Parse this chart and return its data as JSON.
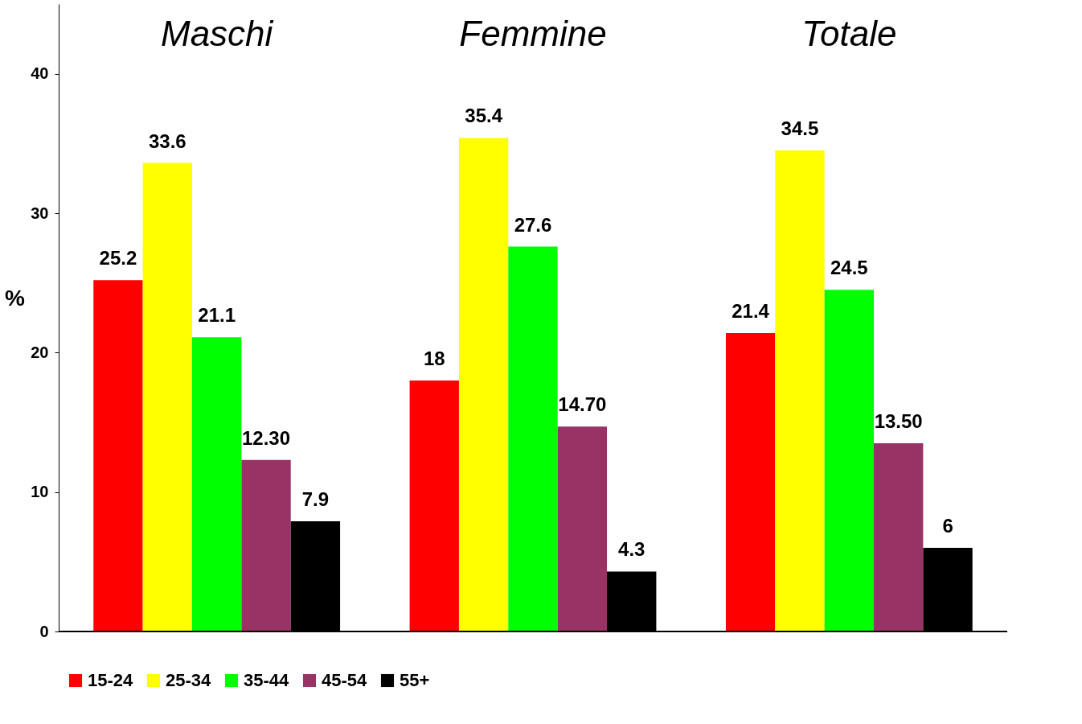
{
  "chart_data": {
    "type": "bar",
    "ylabel": "%",
    "categories": [
      "Maschi",
      "Femmine",
      "Totale"
    ],
    "series": [
      {
        "name": "15-24",
        "color": "#ff0000",
        "values": [
          25.2,
          18,
          21.4
        ],
        "value_labels": [
          "25.2",
          "18",
          "21.4"
        ]
      },
      {
        "name": "25-34",
        "color": "#ffff00",
        "values": [
          33.6,
          35.4,
          34.5
        ],
        "value_labels": [
          "33.6",
          "35.4",
          "34.5"
        ]
      },
      {
        "name": "35-44",
        "color": "#00ff00",
        "values": [
          21.1,
          27.6,
          24.5
        ],
        "value_labels": [
          "21.1",
          "27.6",
          "24.5"
        ]
      },
      {
        "name": "45-54",
        "color": "#993366",
        "values": [
          12.3,
          14.7,
          13.5
        ],
        "value_labels": [
          "12.30",
          "14.70",
          "13.50"
        ]
      },
      {
        "name": "55+",
        "color": "#000000",
        "values": [
          7.9,
          4.3,
          6
        ],
        "value_labels": [
          "7.9",
          "4.3",
          "6"
        ]
      }
    ],
    "ylim": [
      0,
      45
    ],
    "yticks": [
      0,
      10,
      20,
      30,
      40
    ],
    "grid": false,
    "legend": "bottom"
  }
}
